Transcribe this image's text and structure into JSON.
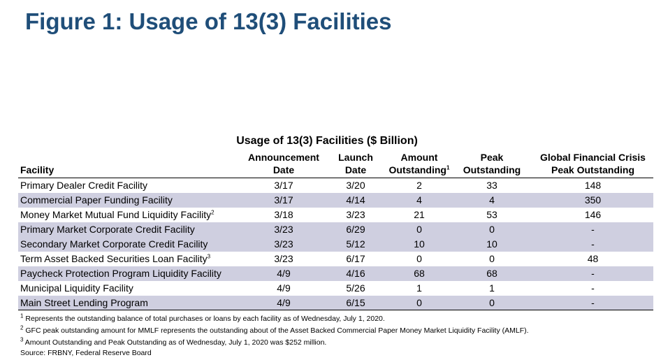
{
  "page_title": "Figure 1: Usage of 13(3) Facilities",
  "table": {
    "title": "Usage of 13(3) Facilities ($ Billion)",
    "headers": {
      "facility": "Facility",
      "announcement_line1": "Announcement",
      "announcement_line2": "Date",
      "launch_line1": "Launch",
      "launch_line2": "Date",
      "amount_line1": "Amount",
      "amount_line2": "Outstanding",
      "amount_sup": "1",
      "peak_line1": "Peak",
      "peak_line2": "Outstanding",
      "gfc_line1": "Global Financial Crisis",
      "gfc_line2": "Peak Outstanding"
    },
    "rows": [
      {
        "name": "Primary Dealer Credit Facility",
        "sup": "",
        "announcement": "3/17",
        "launch": "3/20",
        "amount": "2",
        "peak": "33",
        "gfc": "148",
        "shaded": false
      },
      {
        "name": "Commercial Paper Funding Facility",
        "sup": "",
        "announcement": "3/17",
        "launch": "4/14",
        "amount": "4",
        "peak": "4",
        "gfc": "350",
        "shaded": true
      },
      {
        "name": "Money Market Mutual Fund Liquidity Facility",
        "sup": "2",
        "announcement": "3/18",
        "launch": "3/23",
        "amount": "21",
        "peak": "53",
        "gfc": "146",
        "shaded": false
      },
      {
        "name": "Primary Market Corporate Credit Facility",
        "sup": "",
        "announcement": "3/23",
        "launch": "6/29",
        "amount": "0",
        "peak": "0",
        "gfc": "-",
        "shaded": true
      },
      {
        "name": "Secondary Market Corporate Credit Facility",
        "sup": "",
        "announcement": "3/23",
        "launch": "5/12",
        "amount": "10",
        "peak": "10",
        "gfc": "-",
        "shaded": true
      },
      {
        "name": "Term Asset Backed Securities Loan Facility",
        "sup": "3",
        "announcement": "3/23",
        "launch": "6/17",
        "amount": "0",
        "peak": "0",
        "gfc": "48",
        "shaded": false
      },
      {
        "name": "Paycheck Protection Program Liquidity Facility",
        "sup": "",
        "announcement": "4/9",
        "launch": "4/16",
        "amount": "68",
        "peak": "68",
        "gfc": "-",
        "shaded": true
      },
      {
        "name": "Municipal Liquidity Facility",
        "sup": "",
        "announcement": "4/9",
        "launch": "5/26",
        "amount": "1",
        "peak": "1",
        "gfc": "-",
        "shaded": false
      },
      {
        "name": "Main Street Lending Program",
        "sup": "",
        "announcement": "4/9",
        "launch": "6/15",
        "amount": "0",
        "peak": "0",
        "gfc": "-",
        "shaded": true
      }
    ],
    "column_widths": [
      322,
      116,
      90,
      92,
      116,
      173
    ]
  },
  "footnotes": [
    {
      "num": "1",
      "text": "Represents the outstanding balance of total purchases or loans by each facility as of Wednesday, July 1, 2020."
    },
    {
      "num": "2",
      "text": "GFC peak outstanding amount for MMLF represents the outstanding about of the Asset Backed Commercial Paper Money Market Liquidity Facility (AMLF)."
    },
    {
      "num": "3",
      "text": "Amount Outstanding and Peak Outstanding as of Wednesday, July 1, 2020 was $252 million."
    }
  ],
  "source": "Source: FRBNY, Federal Reserve Board",
  "colors": {
    "title": "#1f4e79",
    "shaded_row": "#cfcfe0"
  }
}
